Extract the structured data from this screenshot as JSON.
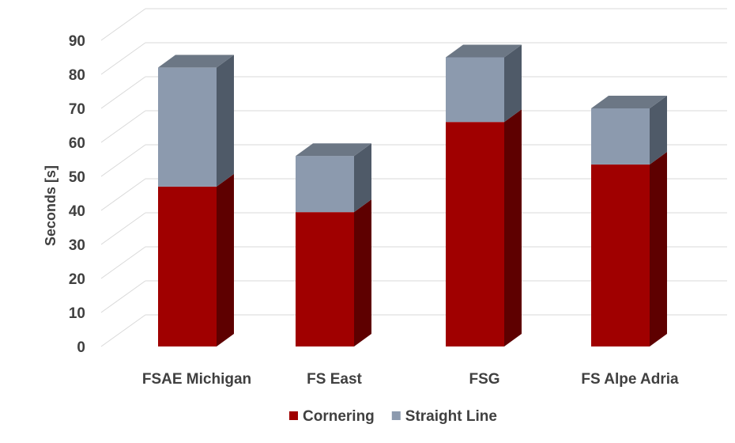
{
  "chart_data": {
    "type": "bar",
    "stacked": true,
    "three_d": true,
    "categories": [
      "FSAE Michigan",
      "FS East",
      "FSG",
      "FS Alpe Adria"
    ],
    "series": [
      {
        "name": "Cornering",
        "values": [
          47,
          39.5,
          66,
          53.5
        ],
        "color": "#a00000",
        "side_color": "#5e0000"
      },
      {
        "name": "Straight Line",
        "values": [
          35,
          16.5,
          19,
          16.5
        ],
        "color": "#8c9aae",
        "side_color": "#4f5a68",
        "top_color": "#6c7785"
      }
    ],
    "ylabel": "Seconds [s]",
    "ylim": [
      0,
      90
    ],
    "yticks": [
      0,
      10,
      20,
      30,
      40,
      50,
      60,
      70,
      80,
      90
    ],
    "grid": true,
    "legend_position": "bottom"
  }
}
